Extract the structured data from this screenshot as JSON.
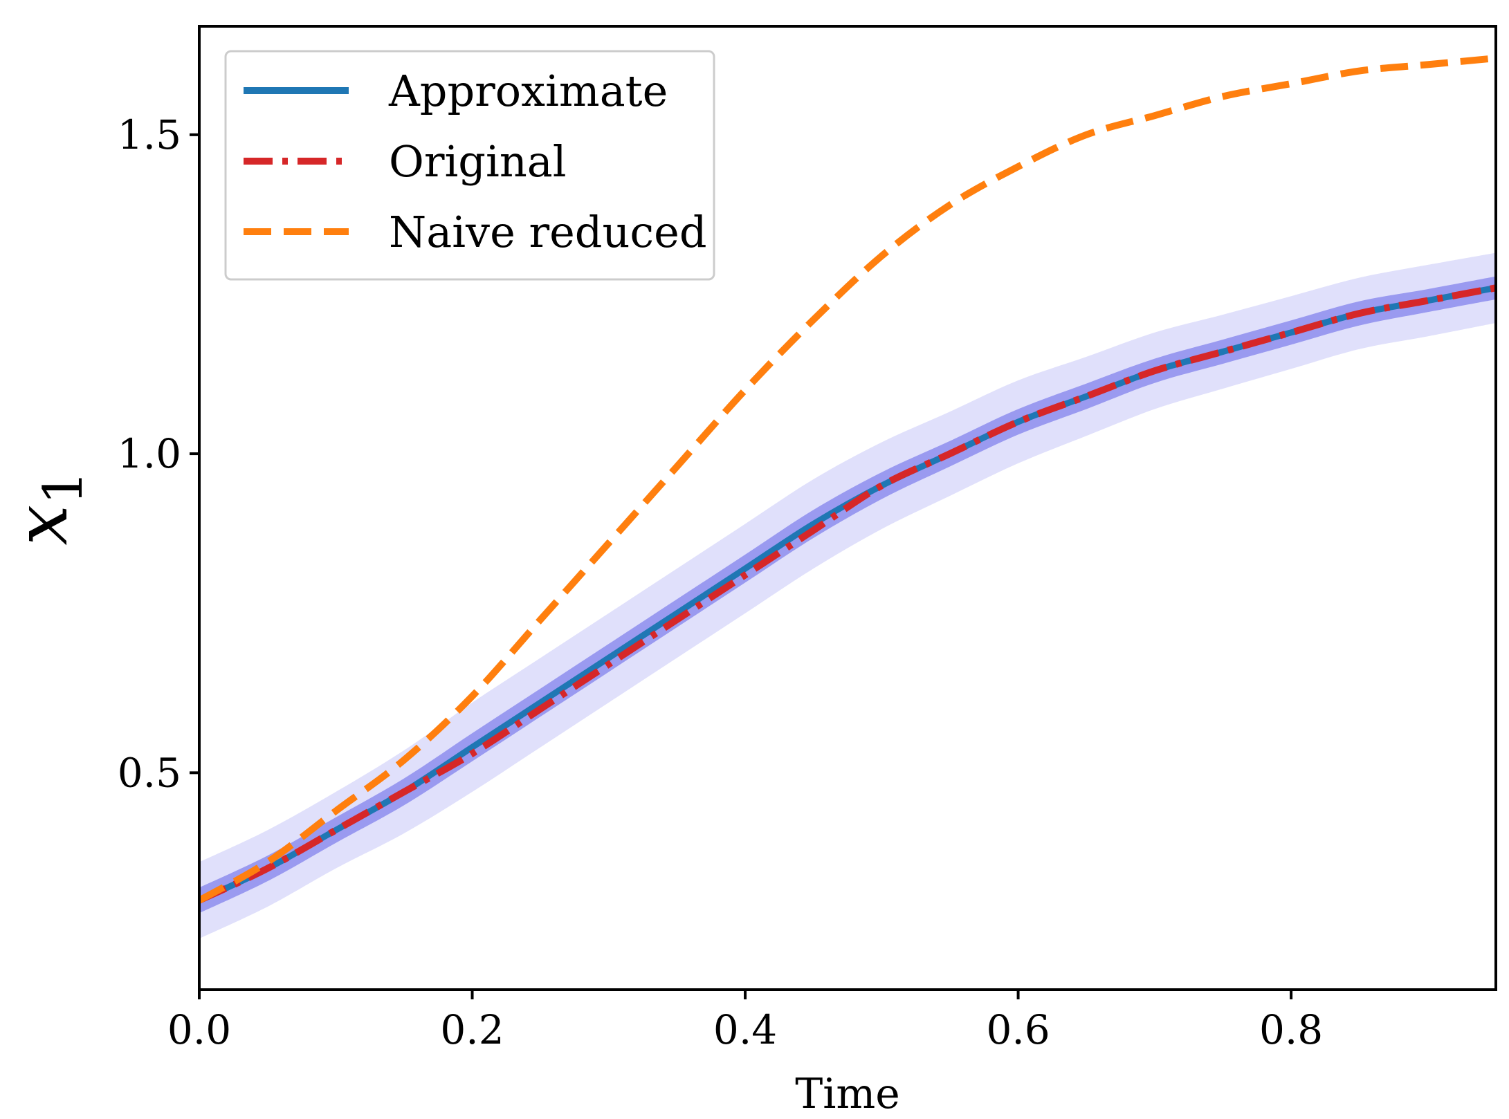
{
  "chart_data": {
    "type": "line",
    "title": "",
    "xlabel": "Time",
    "ylabel_main": "x",
    "ylabel_sub": "1",
    "xlim": [
      0.0,
      0.95
    ],
    "ylim": [
      0.16,
      1.67
    ],
    "xticks": [
      0.0,
      0.2,
      0.4,
      0.6,
      0.8
    ],
    "xtick_labels": [
      "0.0",
      "0.2",
      "0.4",
      "0.6",
      "0.8"
    ],
    "yticks": [
      0.5,
      1.0,
      1.5
    ],
    "ytick_labels": [
      "0.5",
      "1.0",
      "1.5"
    ],
    "grid": false,
    "legend_position": "top-left",
    "x": [
      0.0,
      0.05,
      0.1,
      0.15,
      0.2,
      0.25,
      0.3,
      0.35,
      0.4,
      0.45,
      0.5,
      0.55,
      0.6,
      0.65,
      0.7,
      0.75,
      0.8,
      0.85,
      0.9,
      0.95
    ],
    "series": [
      {
        "name": "Approximate",
        "color": "#1f77b4",
        "style": "solid",
        "values": [
          0.3,
          0.35,
          0.41,
          0.47,
          0.54,
          0.61,
          0.68,
          0.75,
          0.82,
          0.89,
          0.95,
          1.0,
          1.05,
          1.09,
          1.13,
          1.16,
          1.19,
          1.22,
          1.24,
          1.26
        ]
      },
      {
        "name": "Original",
        "color": "#d62728",
        "style": "dashdot",
        "values": [
          0.3,
          0.35,
          0.41,
          0.47,
          0.53,
          0.6,
          0.67,
          0.74,
          0.81,
          0.88,
          0.95,
          1.0,
          1.05,
          1.09,
          1.13,
          1.16,
          1.19,
          1.22,
          1.24,
          1.26
        ]
      },
      {
        "name": "Naive reduced",
        "color": "#ff7f0e",
        "style": "dashed",
        "values": [
          0.3,
          0.36,
          0.44,
          0.52,
          0.62,
          0.74,
          0.86,
          0.98,
          1.1,
          1.21,
          1.31,
          1.39,
          1.45,
          1.5,
          1.53,
          1.56,
          1.58,
          1.6,
          1.61,
          1.62
        ]
      }
    ],
    "bands": [
      {
        "name": "outer uncertainty band",
        "color": "#e0e0fb",
        "halfwidth": [
          0.06,
          0.06,
          0.06,
          0.065,
          0.07,
          0.07,
          0.07,
          0.07,
          0.07,
          0.07,
          0.068,
          0.066,
          0.065,
          0.062,
          0.06,
          0.058,
          0.057,
          0.056,
          0.056,
          0.055
        ]
      },
      {
        "name": "inner uncertainty band",
        "color": "#9a9af0",
        "halfwidth": [
          0.02,
          0.02,
          0.02,
          0.021,
          0.022,
          0.022,
          0.022,
          0.022,
          0.022,
          0.022,
          0.021,
          0.02,
          0.02,
          0.02,
          0.019,
          0.019,
          0.019,
          0.019,
          0.018,
          0.018
        ]
      }
    ]
  }
}
